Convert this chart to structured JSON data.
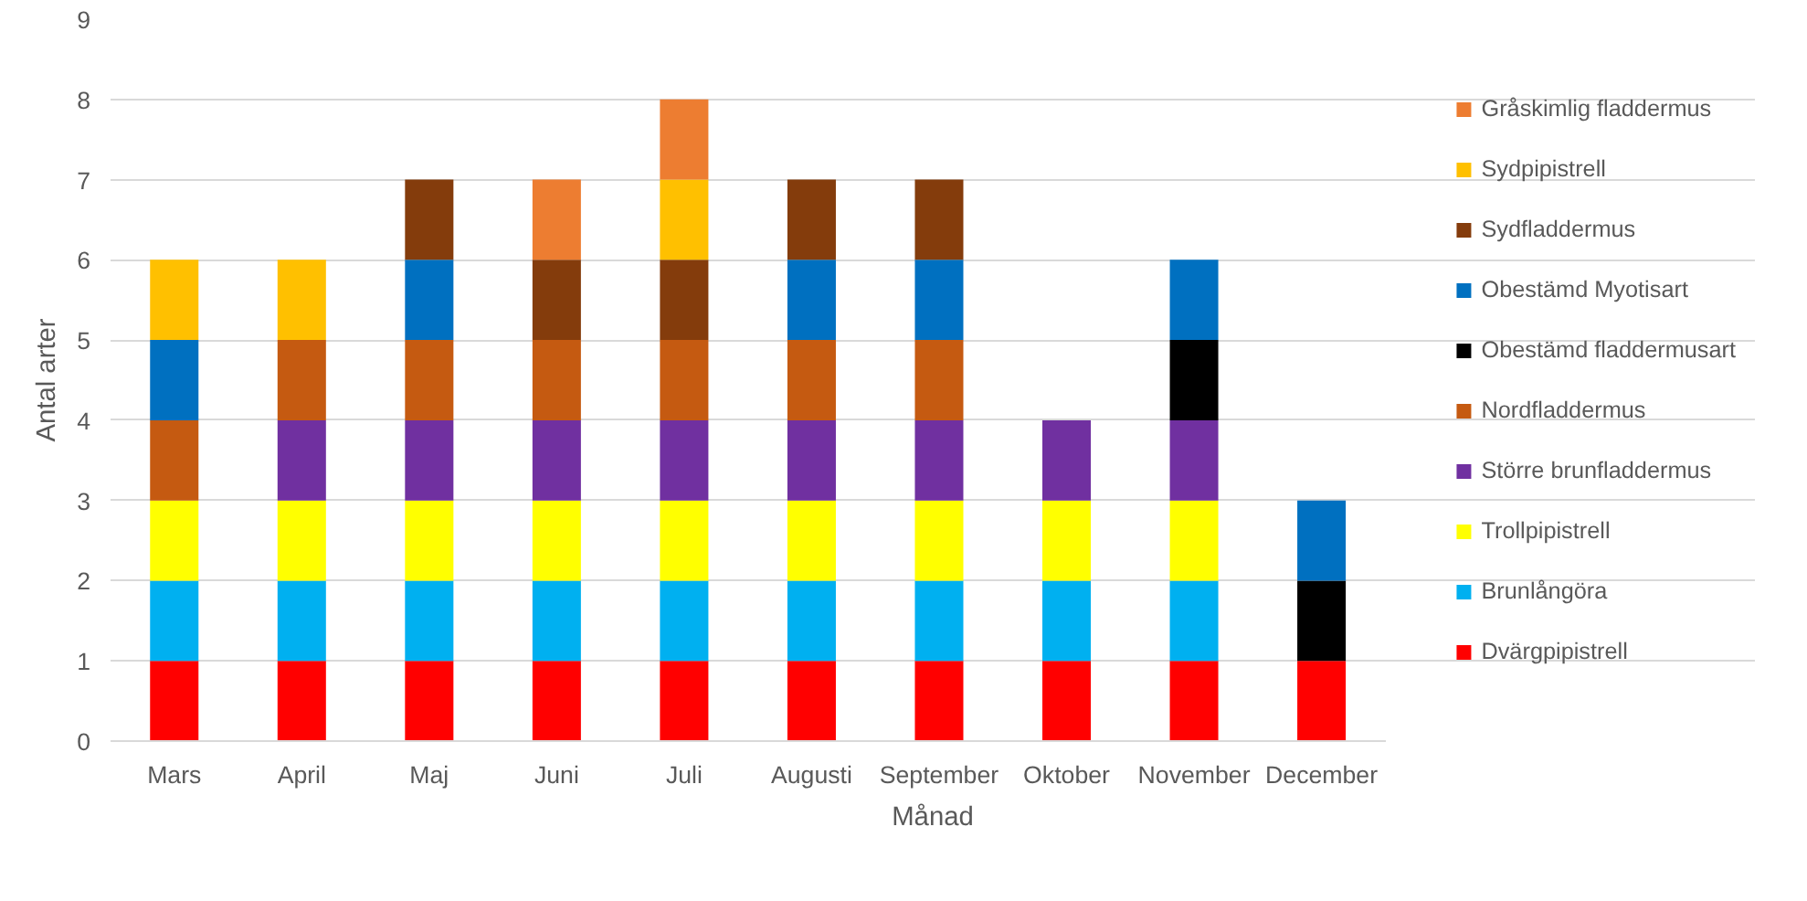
{
  "chart_data": {
    "type": "bar",
    "stacked": true,
    "xlabel": "Månad",
    "ylabel": "Antal arter",
    "categories": [
      "Mars",
      "April",
      "Maj",
      "Juni",
      "Juli",
      "Augusti",
      "September",
      "Oktober",
      "November",
      "December"
    ],
    "ylim": [
      0,
      9
    ],
    "yticks": [
      0,
      1,
      2,
      3,
      4,
      5,
      6,
      7,
      8,
      9
    ],
    "grid": "y",
    "legend": "right",
    "series": [
      {
        "name": "Dvärgpipistrell",
        "color": "#ff0000",
        "values": [
          1,
          1,
          1,
          1,
          1,
          1,
          1,
          1,
          1,
          1
        ]
      },
      {
        "name": "Brunlångöra",
        "color": "#00b0f0",
        "values": [
          1,
          1,
          1,
          1,
          1,
          1,
          1,
          1,
          1,
          null
        ]
      },
      {
        "name": "Trollpipistrell",
        "color": "#ffff00",
        "values": [
          1,
          1,
          1,
          1,
          1,
          1,
          1,
          1,
          1,
          null
        ]
      },
      {
        "name": "Större brunfladdermus",
        "color": "#7030a0",
        "values": [
          null,
          1,
          1,
          1,
          1,
          1,
          1,
          1,
          1,
          null
        ]
      },
      {
        "name": "Nordfladdermus",
        "color": "#c55a11",
        "values": [
          1,
          1,
          1,
          1,
          1,
          1,
          1,
          null,
          null,
          null
        ]
      },
      {
        "name": "Obestämd fladdermusart",
        "color": "#000000",
        "values": [
          null,
          null,
          null,
          null,
          null,
          null,
          null,
          null,
          1,
          1
        ]
      },
      {
        "name": "Obestämd Myotisart",
        "color": "#0070c0",
        "values": [
          1,
          null,
          1,
          null,
          null,
          1,
          1,
          null,
          1,
          1
        ]
      },
      {
        "name": "Sydfladdermus",
        "color": "#843c0c",
        "values": [
          null,
          null,
          1,
          1,
          1,
          1,
          1,
          null,
          null,
          null
        ]
      },
      {
        "name": "Sydpipistrell",
        "color": "#ffc000",
        "values": [
          1,
          1,
          null,
          null,
          1,
          null,
          null,
          null,
          null,
          null
        ]
      },
      {
        "name": "Gråskimlig fladdermus",
        "color": "#ed7d31",
        "values": [
          null,
          null,
          null,
          1,
          1,
          null,
          null,
          null,
          null,
          null
        ]
      }
    ]
  }
}
